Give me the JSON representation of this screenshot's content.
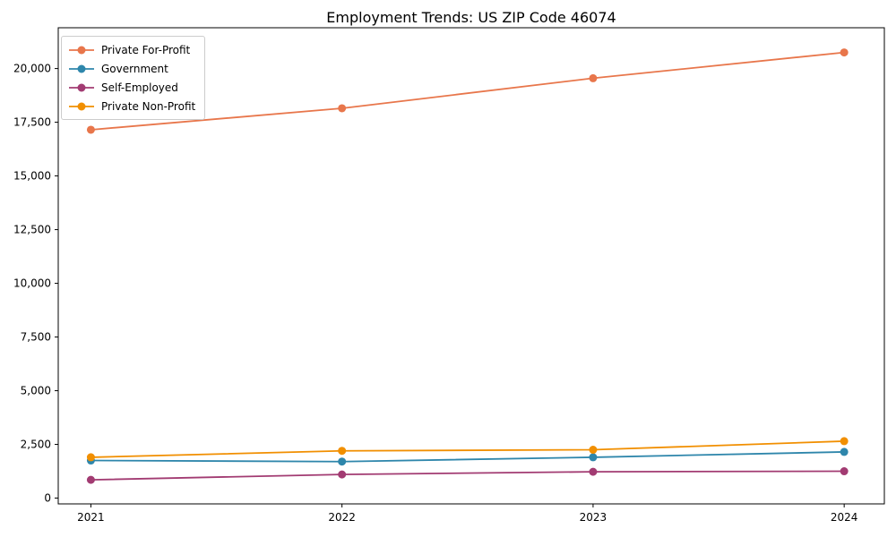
{
  "chart_data": {
    "type": "line",
    "title": "Employment Trends: US ZIP Code 46074",
    "xlabel": "",
    "ylabel": "",
    "x": [
      2021,
      2022,
      2023,
      2024
    ],
    "xtick_labels": [
      "2021",
      "2022",
      "2023",
      "2024"
    ],
    "yticks": [
      0,
      2500,
      5000,
      7500,
      10000,
      12500,
      15000,
      17500,
      20000
    ],
    "ytick_labels": [
      "0",
      "2,500",
      "5,000",
      "7,500",
      "10,000",
      "12,500",
      "15,000",
      "17,500",
      "20,000"
    ],
    "series": [
      {
        "name": "Private For-Profit",
        "color": "#E8764B",
        "values": [
          17150,
          18150,
          19550,
          20750
        ]
      },
      {
        "name": "Government",
        "color": "#2E86AB",
        "values": [
          1750,
          1700,
          1900,
          2150
        ]
      },
      {
        "name": "Self-Employed",
        "color": "#A23B72",
        "values": [
          850,
          1100,
          1225,
          1250
        ]
      },
      {
        "name": "Private Non-Profit",
        "color": "#F18F01",
        "values": [
          1900,
          2200,
          2250,
          2650
        ]
      }
    ],
    "xlim": [
      2020.87,
      2024.16
    ],
    "ylim": [
      -270,
      21900
    ],
    "grid": false,
    "legend_position": "upper-left",
    "marker": "circle",
    "frame_color": "#000000"
  }
}
